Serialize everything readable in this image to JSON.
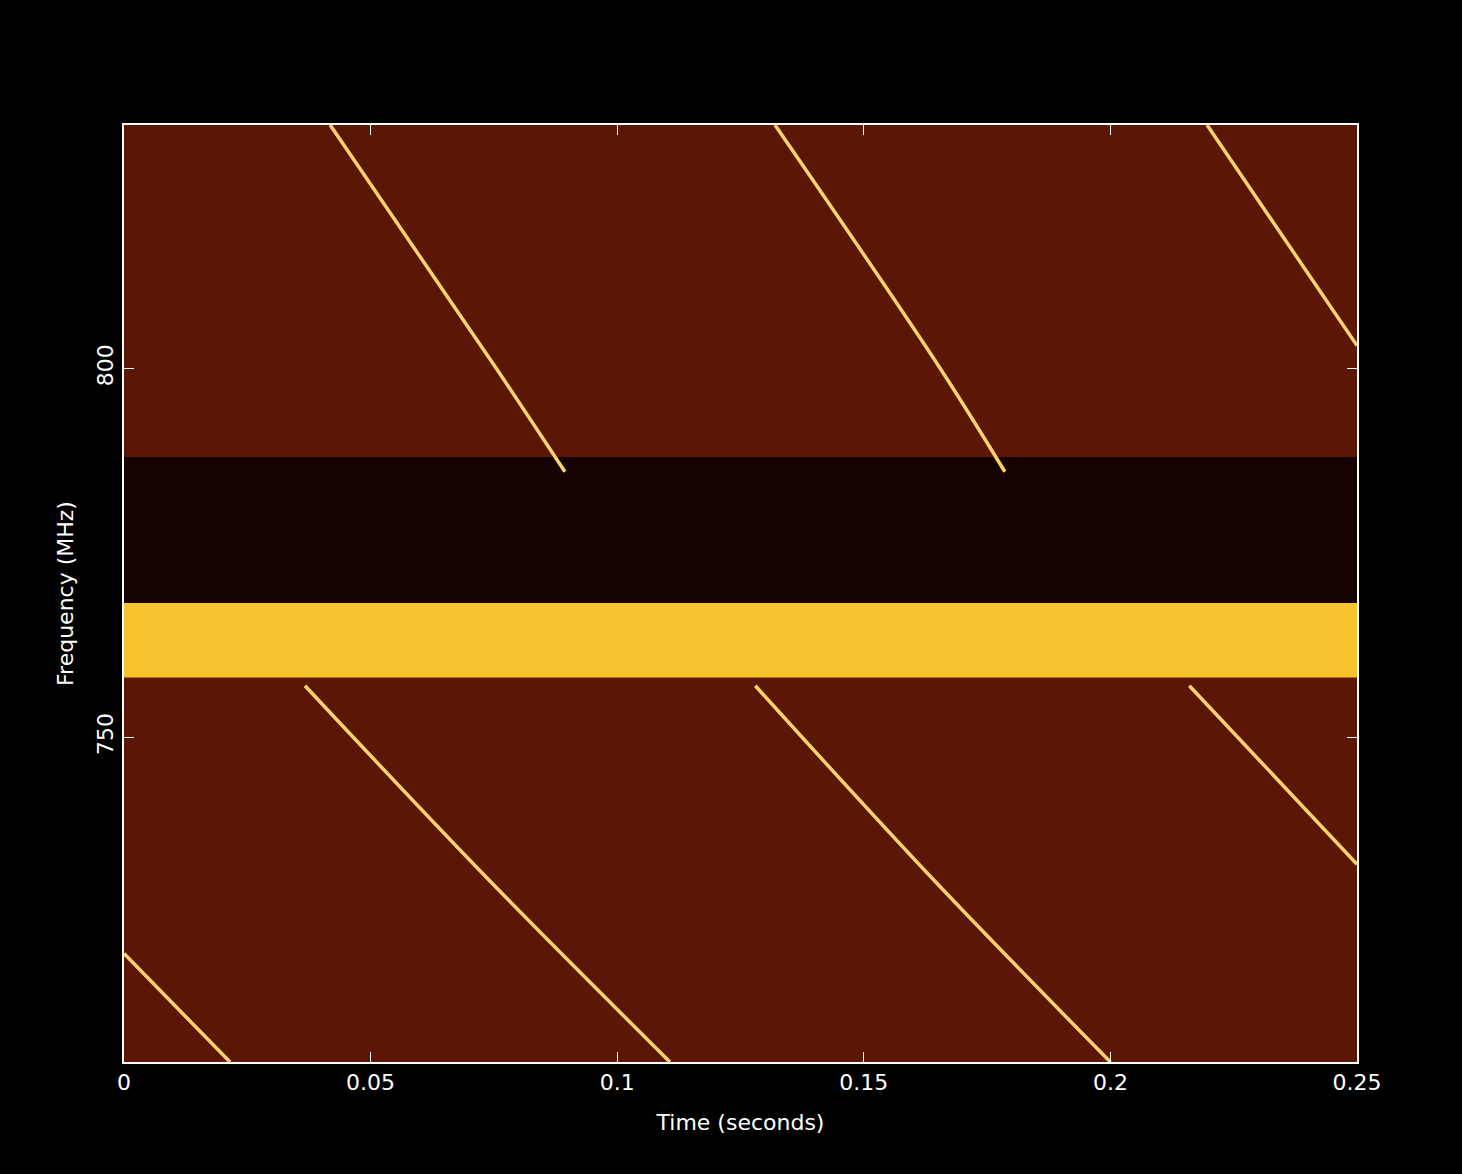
{
  "chart_data": {
    "type": "line",
    "x_label": "Time (seconds)",
    "y_label": "Frequency (MHz)",
    "xlim": [
      0,
      0.25
    ],
    "ylim": [
      706,
      833
    ],
    "xticks": [
      0,
      0.05,
      0.1,
      0.15,
      0.2,
      0.25
    ],
    "yticks": [
      750,
      800
    ],
    "grid": false,
    "color": "#ffd36b",
    "bands": [
      {
        "range": [
          768.2,
          788
        ],
        "color": "#140300"
      },
      {
        "range": [
          758.1,
          768.2
        ],
        "color": "#f8c22c"
      }
    ],
    "series": [
      {
        "x": [
          0.0418,
          0.0755,
          0.0894
        ],
        "values": [
          833,
          800,
          786
        ]
      },
      {
        "x": [
          0.132,
          0.1655,
          0.1786
        ],
        "values": [
          833,
          800,
          786
        ]
      },
      {
        "x": [
          0.2196,
          0.25
        ],
        "values": [
          833,
          803.1
        ]
      },
      {
        "x": [
          0,
          0.0215
        ],
        "values": [
          720.7,
          706
        ]
      },
      {
        "x": [
          0.0367,
          0.0738,
          0.1107
        ],
        "values": [
          757,
          730.8,
          706
        ]
      },
      {
        "x": [
          0.128,
          0.164,
          0.2
        ],
        "values": [
          757,
          730.8,
          706
        ]
      },
      {
        "x": [
          0.216,
          0.25
        ],
        "values": [
          757,
          732.8
        ]
      }
    ]
  }
}
